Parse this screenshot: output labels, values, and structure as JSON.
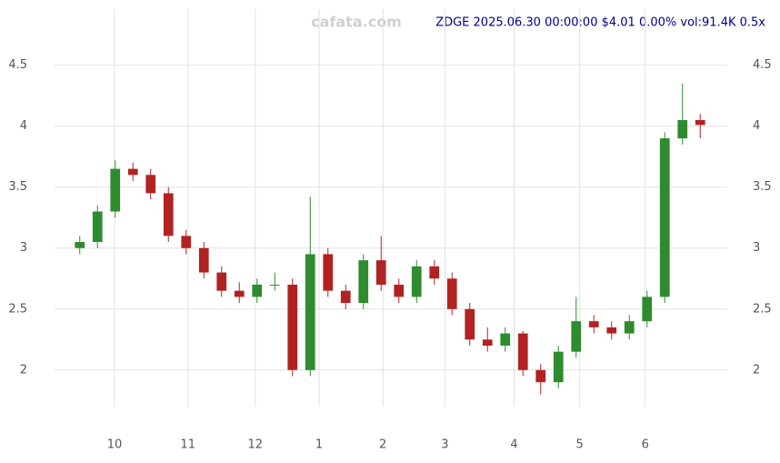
{
  "chart_data": {
    "type": "candlestick",
    "title": "ZDGE 2025.06.30 00:00:00 $4.01 0.00% vol:91.4K 0.5x",
    "watermark": "cafata.com",
    "x": [
      0,
      1,
      2,
      3,
      4,
      5,
      6,
      7,
      8,
      9,
      10,
      11,
      12,
      13,
      14,
      15,
      16,
      17,
      18,
      19,
      20,
      21,
      22,
      23,
      24,
      25,
      26,
      27,
      28,
      29,
      30,
      31,
      32,
      33,
      34,
      35
    ],
    "open": [
      3.0,
      3.05,
      3.3,
      3.65,
      3.6,
      3.45,
      3.1,
      3.0,
      2.8,
      2.65,
      2.6,
      2.7,
      2.7,
      2.0,
      2.95,
      2.65,
      2.55,
      2.9,
      2.7,
      2.6,
      2.85,
      2.75,
      2.5,
      2.25,
      2.2,
      2.3,
      2.0,
      1.9,
      2.15,
      2.4,
      2.35,
      2.3,
      2.4,
      2.6,
      3.9,
      4.05
    ],
    "high": [
      3.1,
      3.35,
      3.72,
      3.7,
      3.65,
      3.5,
      3.15,
      3.05,
      2.85,
      2.72,
      2.75,
      2.8,
      2.75,
      3.42,
      3.0,
      2.7,
      2.95,
      3.1,
      2.75,
      2.9,
      2.9,
      2.8,
      2.55,
      2.35,
      2.35,
      2.32,
      2.05,
      2.2,
      2.6,
      2.45,
      2.4,
      2.45,
      2.65,
      3.95,
      4.35,
      4.1
    ],
    "low": [
      2.95,
      3.0,
      3.25,
      3.55,
      3.4,
      3.05,
      2.95,
      2.75,
      2.6,
      2.55,
      2.55,
      2.65,
      1.95,
      1.95,
      2.6,
      2.5,
      2.5,
      2.65,
      2.55,
      2.55,
      2.7,
      2.45,
      2.2,
      2.15,
      2.15,
      1.95,
      1.8,
      1.85,
      2.1,
      2.3,
      2.25,
      2.25,
      2.35,
      2.55,
      3.85,
      3.9
    ],
    "close": [
      3.05,
      3.3,
      3.65,
      3.6,
      3.45,
      3.1,
      3.0,
      2.8,
      2.65,
      2.6,
      2.7,
      2.7,
      2.0,
      2.95,
      2.65,
      2.55,
      2.9,
      2.7,
      2.6,
      2.85,
      2.75,
      2.5,
      2.25,
      2.2,
      2.3,
      2.0,
      1.9,
      2.15,
      2.4,
      2.35,
      2.3,
      2.4,
      2.6,
      3.9,
      4.05,
      4.01
    ],
    "up_color": "#2e8b2e",
    "down_color": "#b22222",
    "xlim": [
      -0.5,
      35.5
    ],
    "xticks": [
      {
        "value": 1.96,
        "label": "10"
      },
      {
        "value": 6.1,
        "label": "11"
      },
      {
        "value": 9.9,
        "label": "12"
      },
      {
        "value": 13.5,
        "label": "1"
      },
      {
        "value": 17.1,
        "label": "2"
      },
      {
        "value": 20.6,
        "label": "3"
      },
      {
        "value": 24.5,
        "label": "4"
      },
      {
        "value": 28.2,
        "label": "5"
      },
      {
        "value": 31.9,
        "label": "6"
      }
    ],
    "ylim": [
      1.7,
      4.96
    ],
    "yticks": [
      2.0,
      2.5,
      3.0,
      3.5,
      4.0,
      4.5
    ],
    "grid": true
  }
}
